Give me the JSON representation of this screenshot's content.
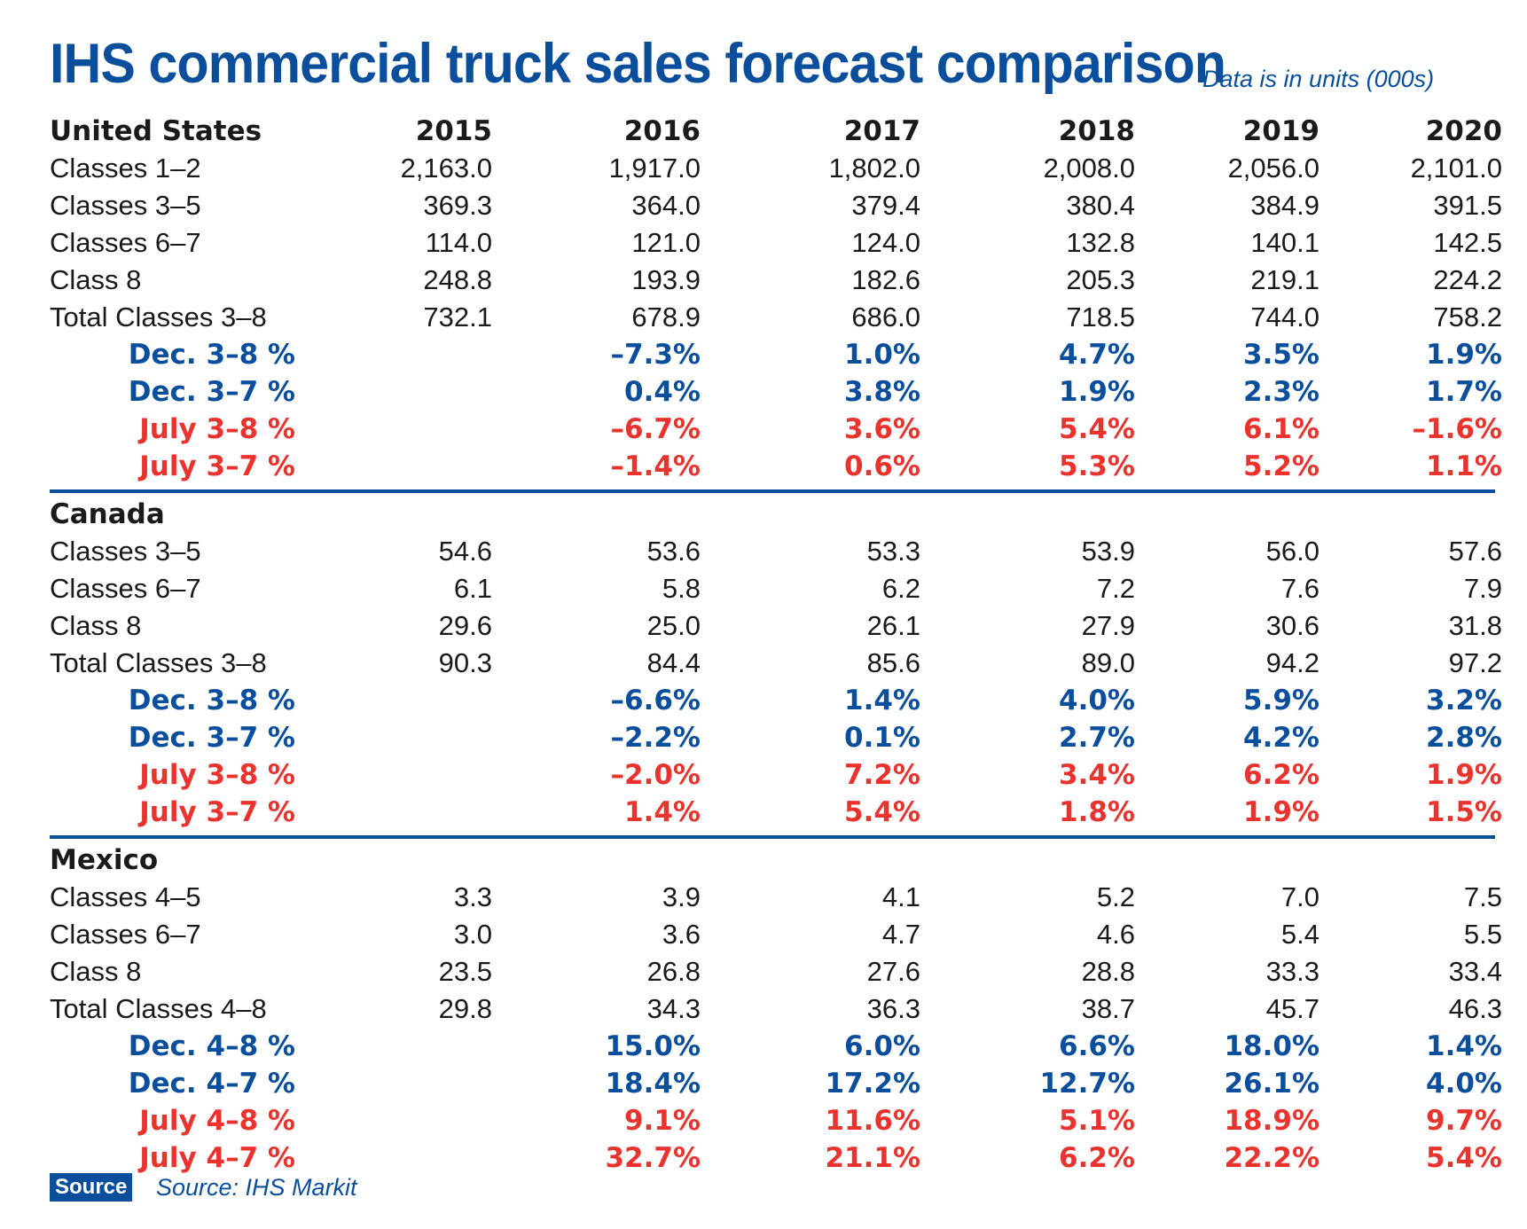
{
  "title": "IHS commercial truck sales forecast comparison",
  "units_note": "Data is in units (000s)",
  "colors": {
    "blue": "#0b4f9c",
    "red": "#e8332e",
    "black": "#1a1a1a"
  },
  "chart_data": {
    "type": "table",
    "title": "IHS commercial truck sales forecast comparison",
    "subtitle": "Data is in units (000s)",
    "columns": [
      "2015",
      "2016",
      "2017",
      "2018",
      "2019",
      "2020"
    ],
    "sections": [
      {
        "name": "United States",
        "rows": [
          {
            "label": "Classes 1–2",
            "style": "normal",
            "values": [
              "2,163.0",
              "1,917.0",
              "1,802.0",
              "2,008.0",
              "2,056.0",
              "2,101.0"
            ]
          },
          {
            "label": "Classes 3–5",
            "style": "normal",
            "values": [
              "369.3",
              "364.0",
              "379.4",
              "380.4",
              "384.9",
              "391.5"
            ]
          },
          {
            "label": "Classes 6–7",
            "style": "normal",
            "values": [
              "114.0",
              "121.0",
              "124.0",
              "132.8",
              "140.1",
              "142.5"
            ]
          },
          {
            "label": "Class 8",
            "style": "normal",
            "values": [
              "248.8",
              "193.9",
              "182.6",
              "205.3",
              "219.1",
              "224.2"
            ]
          },
          {
            "label": "Total Classes 3–8",
            "style": "normal",
            "values": [
              "732.1",
              "678.9",
              "686.0",
              "718.5",
              "744.0",
              "758.2"
            ]
          },
          {
            "label": "Dec. 3–8 %",
            "style": "blue",
            "values": [
              "",
              "–7.3%",
              "1.0%",
              "4.7%",
              "3.5%",
              "1.9%"
            ]
          },
          {
            "label": "Dec. 3–7 %",
            "style": "blue",
            "values": [
              "",
              "0.4%",
              "3.8%",
              "1.9%",
              "2.3%",
              "1.7%"
            ]
          },
          {
            "label": "July 3–8 %",
            "style": "red",
            "values": [
              "",
              "–6.7%",
              "3.6%",
              "5.4%",
              "6.1%",
              "–1.6%"
            ]
          },
          {
            "label": "July 3–7 %",
            "style": "red",
            "values": [
              "",
              "–1.4%",
              "0.6%",
              "5.3%",
              "5.2%",
              "1.1%"
            ]
          }
        ]
      },
      {
        "name": "Canada",
        "rows": [
          {
            "label": "Classes 3–5",
            "style": "normal",
            "values": [
              "54.6",
              "53.6",
              "53.3",
              "53.9",
              "56.0",
              "57.6"
            ]
          },
          {
            "label": "Classes 6–7",
            "style": "normal",
            "values": [
              "6.1",
              "5.8",
              "6.2",
              "7.2",
              "7.6",
              "7.9"
            ]
          },
          {
            "label": "Class 8",
            "style": "normal",
            "values": [
              "29.6",
              "25.0",
              "26.1",
              "27.9",
              "30.6",
              "31.8"
            ]
          },
          {
            "label": "Total Classes 3–8",
            "style": "normal",
            "values": [
              "90.3",
              "84.4",
              "85.6",
              "89.0",
              "94.2",
              "97.2"
            ]
          },
          {
            "label": "Dec. 3–8 %",
            "style": "blue",
            "values": [
              "",
              "–6.6%",
              "1.4%",
              "4.0%",
              "5.9%",
              "3.2%"
            ]
          },
          {
            "label": "Dec. 3–7 %",
            "style": "blue",
            "values": [
              "",
              "–2.2%",
              "0.1%",
              "2.7%",
              "4.2%",
              "2.8%"
            ]
          },
          {
            "label": "July 3–8 %",
            "style": "red",
            "values": [
              "",
              "–2.0%",
              "7.2%",
              "3.4%",
              "6.2%",
              "1.9%"
            ]
          },
          {
            "label": "July 3–7 %",
            "style": "red",
            "values": [
              "",
              "1.4%",
              "5.4%",
              "1.8%",
              "1.9%",
              "1.5%"
            ]
          }
        ]
      },
      {
        "name": "Mexico",
        "rows": [
          {
            "label": "Classes 4–5",
            "style": "normal",
            "values": [
              "3.3",
              "3.9",
              "4.1",
              "5.2",
              "7.0",
              "7.5"
            ]
          },
          {
            "label": "Classes 6–7",
            "style": "normal",
            "values": [
              "3.0",
              "3.6",
              "4.7",
              "4.6",
              "5.4",
              "5.5"
            ]
          },
          {
            "label": "Class 8",
            "style": "normal",
            "values": [
              "23.5",
              "26.8",
              "27.6",
              "28.8",
              "33.3",
              "33.4"
            ]
          },
          {
            "label": "Total Classes 4–8",
            "style": "normal",
            "values": [
              "29.8",
              "34.3",
              "36.3",
              "38.7",
              "45.7",
              "46.3"
            ]
          },
          {
            "label": "Dec. 4–8 %",
            "style": "blue",
            "values": [
              "",
              "15.0%",
              "6.0%",
              "6.6%",
              "18.0%",
              "1.4%"
            ]
          },
          {
            "label": "Dec. 4–7 %",
            "style": "blue",
            "values": [
              "",
              "18.4%",
              "17.2%",
              "12.7%",
              "26.1%",
              "4.0%"
            ]
          },
          {
            "label": "July 4–8 %",
            "style": "red",
            "values": [
              "",
              "9.1%",
              "11.6%",
              "5.1%",
              "18.9%",
              "9.7%"
            ]
          },
          {
            "label": "July 4–7 %",
            "style": "red",
            "values": [
              "",
              "32.7%",
              "21.1%",
              "6.2%",
              "22.2%",
              "5.4%"
            ]
          }
        ]
      }
    ]
  },
  "source": {
    "badge": "Source",
    "text": "Source: IHS Markit"
  }
}
